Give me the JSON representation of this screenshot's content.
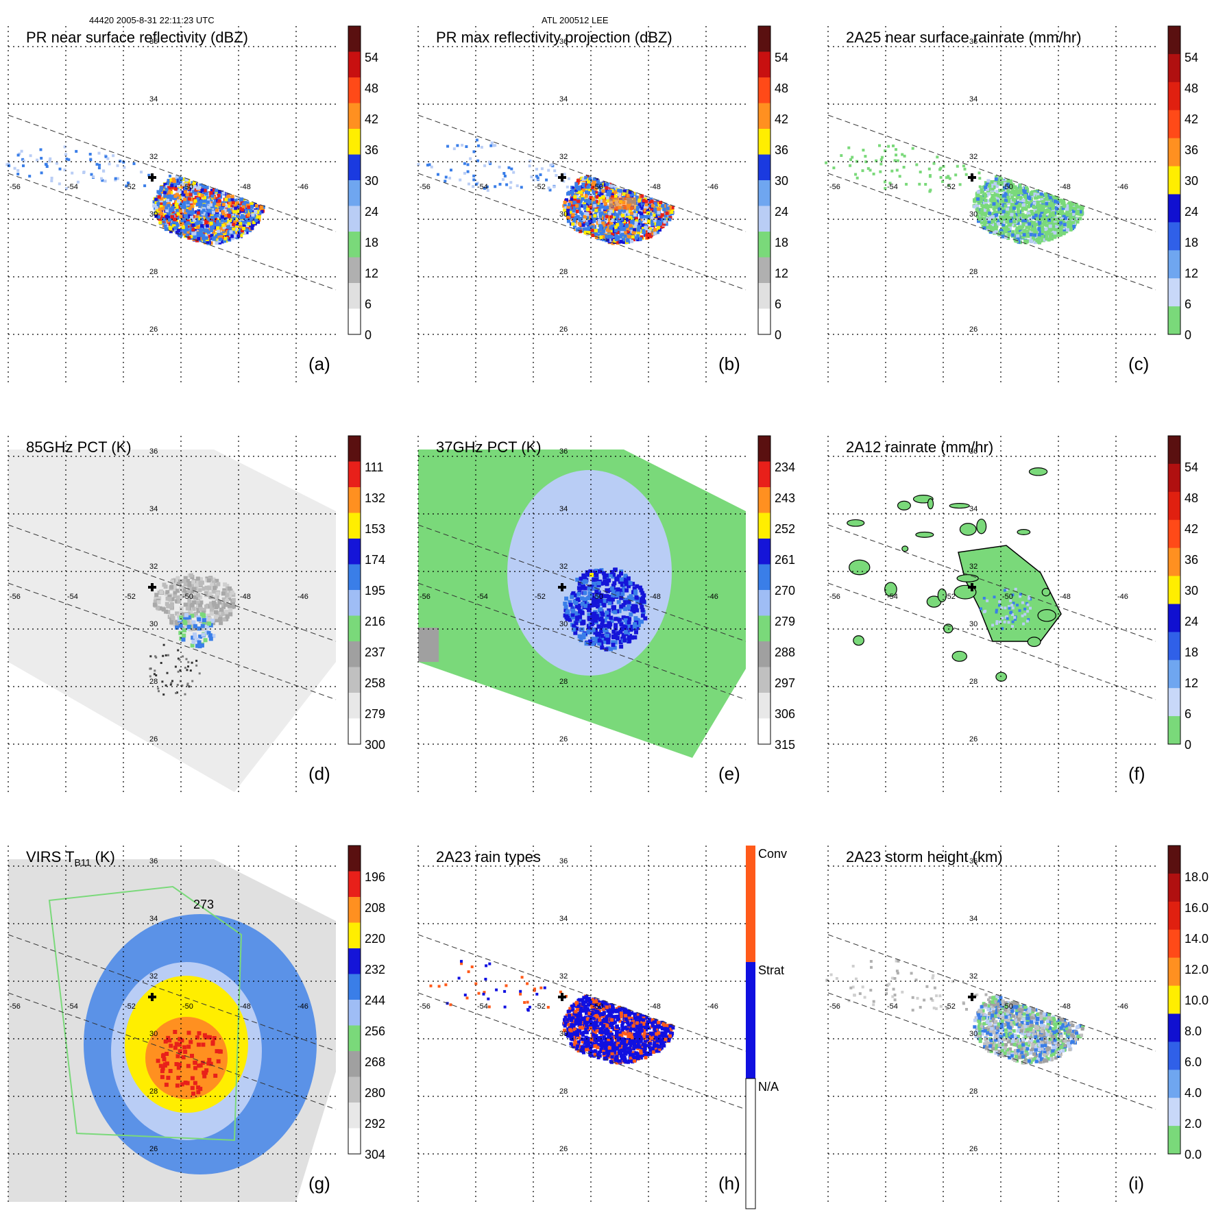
{
  "header": {
    "left": "44420 2005-8-31 22:11:23 UTC",
    "center": "ATL 200512 LEE"
  },
  "grid_labels": {
    "lats": [
      "36",
      "34",
      "32",
      "30",
      "28",
      "26"
    ],
    "lons": [
      "-56",
      "-54",
      "-52",
      "-50",
      "-48",
      "-46"
    ]
  },
  "colors": {
    "light_gray": "#f0f0f0",
    "gray": "#a0a0a0",
    "green": "#7ad97a",
    "light_blue": "#b9cdf5",
    "blue": "#3a7ee8",
    "dark_blue": "#1515d8",
    "yellow": "#ffee00",
    "orange": "#ff9020",
    "red": "#e8201a",
    "dark_red": "#5a1010",
    "conv": "#ff5a1a",
    "strat": "#1010e0"
  },
  "panels": [
    {
      "id": "a",
      "title_html": "PR near surface reflectivity (dBZ)",
      "label": "(a)",
      "scale_labels": [
        "54",
        "48",
        "42",
        "36",
        "30",
        "24",
        "18",
        "12",
        "6",
        "0"
      ]
    },
    {
      "id": "b",
      "title_html": "PR max reflectivity projection (dBZ)",
      "label": "(b)",
      "scale_labels": [
        "54",
        "48",
        "42",
        "36",
        "30",
        "24",
        "18",
        "12",
        "6",
        "0"
      ]
    },
    {
      "id": "c",
      "title_html": "2A25 near surface rainrate (mm/hr)",
      "label": "(c)",
      "scale_labels": [
        "54",
        "48",
        "42",
        "36",
        "30",
        "24",
        "18",
        "12",
        "6",
        "0"
      ]
    },
    {
      "id": "d",
      "title_html": "85GHz PCT (K)",
      "label": "(d)",
      "scale_labels": [
        "111",
        "132",
        "153",
        "174",
        "195",
        "216",
        "237",
        "258",
        "279",
        "300"
      ]
    },
    {
      "id": "e",
      "title_html": "37GHz PCT (K)",
      "label": "(e)",
      "scale_labels": [
        "234",
        "243",
        "252",
        "261",
        "270",
        "279",
        "288",
        "297",
        "306",
        "315"
      ]
    },
    {
      "id": "f",
      "title_html": "2A12 rainrate (mm/hr)",
      "label": "(f)",
      "scale_labels": [
        "54",
        "48",
        "42",
        "36",
        "30",
        "24",
        "18",
        "12",
        "6",
        "0"
      ]
    },
    {
      "id": "g",
      "title_main": "VIRS T",
      "title_sub": "B11",
      "title_tail": " (K)",
      "label": "(g)",
      "contour_label": "273",
      "scale_labels": [
        "196",
        "208",
        "220",
        "232",
        "244",
        "256",
        "268",
        "280",
        "292",
        "304"
      ]
    },
    {
      "id": "h",
      "title_html": "2A23 rain types",
      "label": "(h)",
      "scale_labels": [
        "Conv",
        "Strat",
        "N/A"
      ]
    },
    {
      "id": "i",
      "title_html": "2A23 storm height (km)",
      "label": "(i)",
      "scale_labels": [
        "18.0",
        "16.0",
        "14.0",
        "12.0",
        "10.0",
        "8.0",
        "6.0",
        "4.0",
        "2.0",
        "0.0"
      ]
    }
  ]
}
